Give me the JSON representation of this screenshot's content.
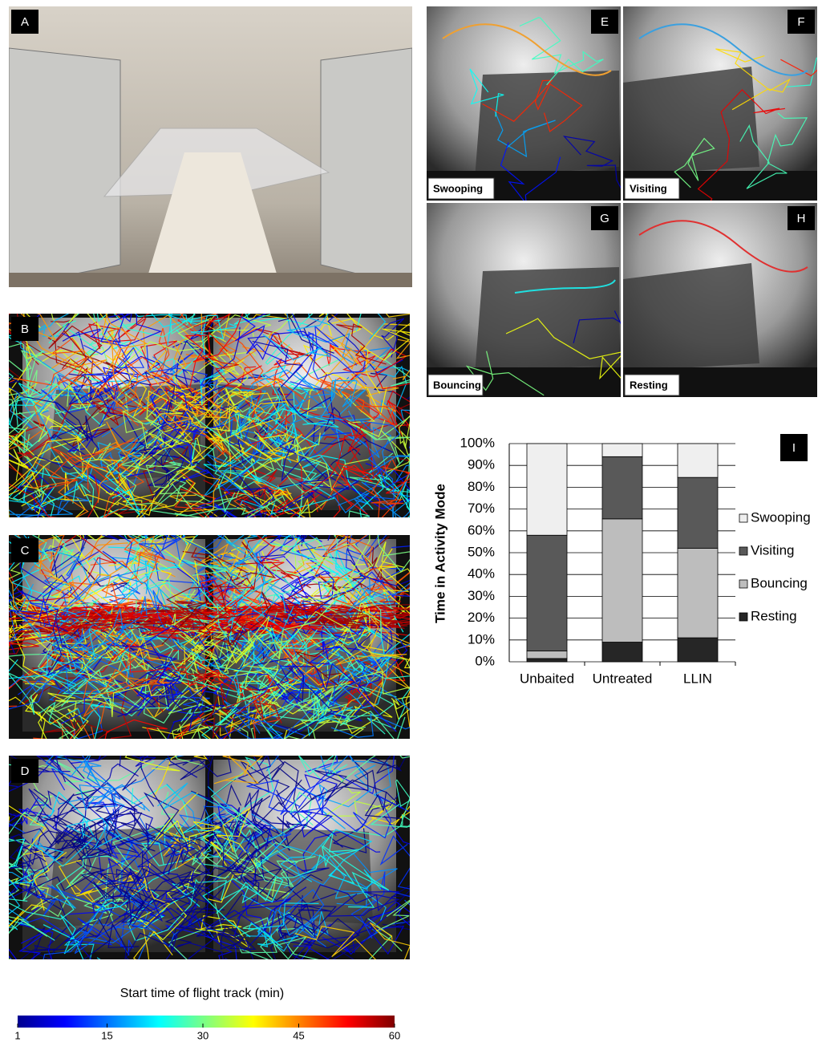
{
  "panels": [
    {
      "label": "A"
    },
    {
      "label": "B"
    },
    {
      "label": "C"
    },
    {
      "label": "D"
    },
    {
      "label": "E",
      "caption": "Swooping"
    },
    {
      "label": "F",
      "caption": "Visiting"
    },
    {
      "label": "G",
      "caption": "Bouncing"
    },
    {
      "label": "H",
      "caption": "Resting"
    }
  ],
  "colorbar": {
    "title": "Start time of flight track (min)",
    "range": [
      1,
      60
    ],
    "ticks": [
      1,
      15,
      30,
      45,
      60
    ]
  },
  "chart_data": {
    "type": "stacked_bar",
    "label": "I",
    "ylabel": "Time in Activity Mode",
    "categories": [
      "Unbaited",
      "Untreated",
      "LLIN"
    ],
    "series": [
      {
        "name": "Swooping",
        "color": "#efefef",
        "values": [
          42,
          6,
          15.5
        ]
      },
      {
        "name": "Visiting",
        "color": "#595959",
        "values": [
          53,
          28.5,
          32.5
        ]
      },
      {
        "name": "Bouncing",
        "color": "#bdbdbd",
        "values": [
          3.5,
          56.5,
          41
        ]
      },
      {
        "name": "Resting",
        "color": "#262626",
        "values": [
          1.5,
          9,
          11
        ]
      }
    ],
    "ylim": [
      0,
      100
    ],
    "yticks": [
      {
        "value": 0,
        "label": "0%"
      },
      {
        "value": 10,
        "label": "10%"
      },
      {
        "value": 20,
        "label": "20%"
      },
      {
        "value": 30,
        "label": "30%"
      },
      {
        "value": 40,
        "label": "40%"
      },
      {
        "value": 50,
        "label": "50%"
      },
      {
        "value": 60,
        "label": "60%"
      },
      {
        "value": 70,
        "label": "70%"
      },
      {
        "value": 80,
        "label": "80%"
      },
      {
        "value": 90,
        "label": "90%"
      },
      {
        "value": 100,
        "label": "100%"
      }
    ],
    "grid": true,
    "legend": "right"
  }
}
